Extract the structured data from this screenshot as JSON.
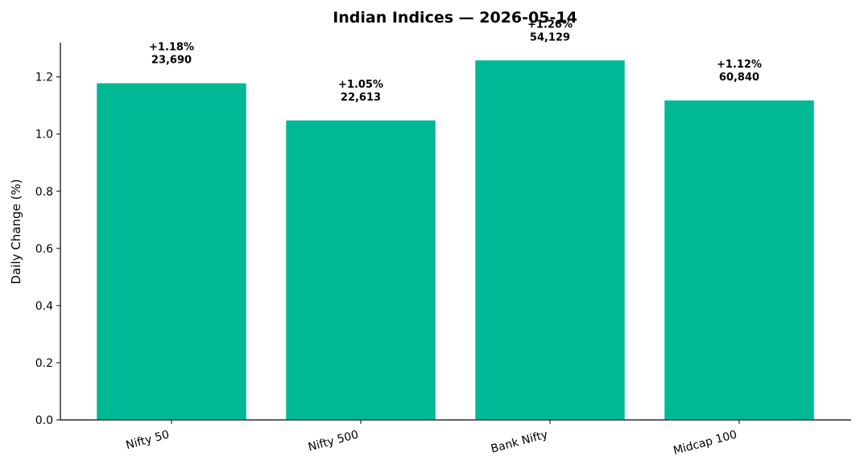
{
  "chart_data": {
    "type": "bar",
    "title": "Indian Indices — 2026-05-14",
    "xlabel": "",
    "ylabel": "Daily Change (%)",
    "ylim": [
      0,
      1.32
    ],
    "yticks": [
      0.0,
      0.2,
      0.4,
      0.6,
      0.8,
      1.0,
      1.2
    ],
    "ytick_labels": [
      "0.0",
      "0.2",
      "0.4",
      "0.6",
      "0.8",
      "1.0",
      "1.2"
    ],
    "categories": [
      "Nifty 50",
      "Nifty 500",
      "Bank Nifty",
      "Midcap 100"
    ],
    "values": [
      1.18,
      1.05,
      1.26,
      1.12
    ],
    "data_labels": [
      {
        "change": "+1.18%",
        "level": "23,690"
      },
      {
        "change": "+1.05%",
        "level": "22,613"
      },
      {
        "change": "+1.26%",
        "level": "54,129"
      },
      {
        "change": "+1.12%",
        "level": "60,840"
      }
    ],
    "bar_color": "#00b894",
    "grid": false,
    "legend": "none"
  }
}
